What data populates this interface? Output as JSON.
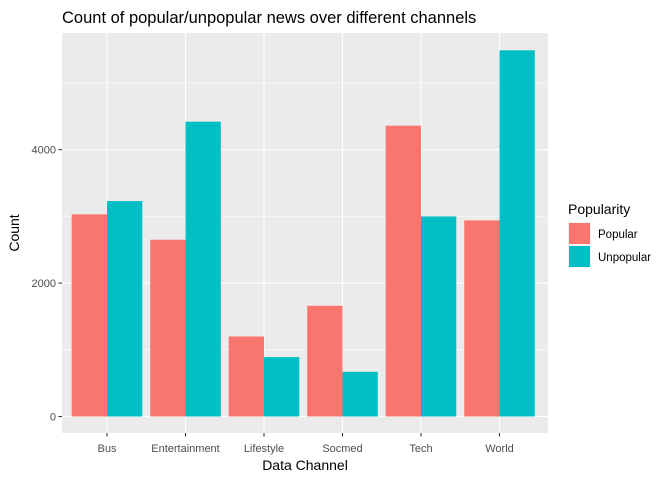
{
  "chart_data": {
    "type": "bar",
    "title": "Count of popular/unpopular news over different channels",
    "xlabel": "Data Channel",
    "ylabel": "Count",
    "categories": [
      "Bus",
      "Entertainment",
      "Lifestyle",
      "Socmed",
      "Tech",
      "World"
    ],
    "series": [
      {
        "name": "Popular",
        "color": "#F8766D",
        "values": [
          3030,
          2650,
          1200,
          1660,
          4360,
          2940
        ]
      },
      {
        "name": "Unpopular",
        "color": "#00BFC4",
        "values": [
          3230,
          4420,
          890,
          670,
          3000,
          5490
        ]
      }
    ],
    "ylim": [
      0,
      5750
    ],
    "yticks": [
      0,
      2000,
      4000
    ],
    "grid": true,
    "legend": {
      "title": "Popularity",
      "position": "right"
    },
    "panel_background": "#EBEBEB",
    "gridline_color": "#FFFFFF"
  }
}
